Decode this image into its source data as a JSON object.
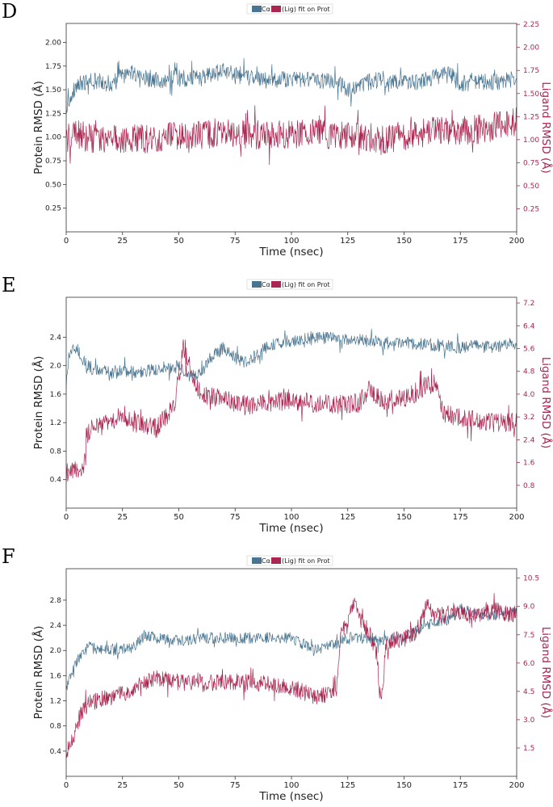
{
  "colors": {
    "protein": "#4a7590",
    "ligand": "#a8264f",
    "axis": "#222222"
  },
  "chart_data": [
    {
      "type": "line",
      "panel_label": "D",
      "legend": [
        "Cα",
        "(Lig) fit on Prot"
      ],
      "xlabel": "Time (nsec)",
      "ylabel": "Protein RMSD (Å)",
      "y2label": "Ligand RMSD (Å)",
      "xlim": [
        0,
        200
      ],
      "ylim": [
        0,
        2.2
      ],
      "y2lim": [
        0,
        2.26
      ],
      "x_ticks": [
        "0",
        "25",
        "50",
        "75",
        "100",
        "125",
        "150",
        "175",
        "200"
      ],
      "y_ticks": [
        "0.25",
        "0.50",
        "0.75",
        "1.00",
        "1.25",
        "1.50",
        "1.75",
        "2.00"
      ],
      "y2_ticks": [
        "0.25",
        "0.50",
        "0.75",
        "1.00",
        "1.25",
        "1.50",
        "1.75",
        "2.00",
        "2.25"
      ],
      "series": [
        {
          "name": "Protein Cα",
          "axis": "left",
          "x": [
            0,
            2,
            5,
            10,
            15,
            20,
            25,
            30,
            40,
            50,
            60,
            70,
            75,
            80,
            90,
            100,
            110,
            120,
            125,
            130,
            140,
            150,
            160,
            170,
            175,
            180,
            190,
            200
          ],
          "y": [
            1.3,
            1.45,
            1.55,
            1.58,
            1.6,
            1.55,
            1.65,
            1.68,
            1.6,
            1.62,
            1.62,
            1.7,
            1.65,
            1.63,
            1.6,
            1.62,
            1.6,
            1.58,
            1.5,
            1.55,
            1.62,
            1.58,
            1.6,
            1.68,
            1.55,
            1.6,
            1.58,
            1.62
          ],
          "noise": 0.09
        },
        {
          "name": "(Lig) fit on Prot",
          "axis": "right",
          "x": [
            0,
            2,
            5,
            10,
            20,
            30,
            40,
            50,
            60,
            70,
            80,
            90,
            100,
            110,
            120,
            130,
            140,
            150,
            160,
            170,
            180,
            190,
            200
          ],
          "y": [
            1.0,
            1.05,
            1.05,
            1.02,
            1.0,
            1.02,
            1.0,
            1.05,
            1.05,
            1.08,
            1.05,
            1.05,
            1.05,
            1.08,
            1.05,
            1.05,
            1.0,
            1.05,
            1.08,
            1.1,
            1.1,
            1.15,
            1.2
          ],
          "noise": 0.16
        }
      ]
    },
    {
      "type": "line",
      "panel_label": "E",
      "legend": [
        "Cα",
        "(Lig) fit on Prot"
      ],
      "xlabel": "Time (nsec)",
      "ylabel": "Protein RMSD (Å)",
      "y2label": "Ligand RMSD (Å)",
      "xlim": [
        0,
        200
      ],
      "ylim": [
        0,
        2.96
      ],
      "y2lim": [
        0,
        7.4
      ],
      "x_ticks": [
        "0",
        "25",
        "50",
        "75",
        "100",
        "125",
        "150",
        "175",
        "200"
      ],
      "y_ticks": [
        "0.4",
        "0.8",
        "1.2",
        "1.6",
        "2.0",
        "2.4"
      ],
      "y2_ticks": [
        "0.8",
        "1.6",
        "2.4",
        "3.2",
        "4.0",
        "4.8",
        "5.6",
        "6.4",
        "7.2"
      ],
      "series": [
        {
          "name": "Protein Cα",
          "axis": "left",
          "x": [
            0,
            2,
            5,
            8,
            12,
            20,
            25,
            30,
            40,
            50,
            55,
            60,
            65,
            70,
            75,
            80,
            85,
            90,
            100,
            110,
            120,
            130,
            140,
            150,
            160,
            170,
            175,
            180,
            190,
            200
          ],
          "y": [
            1.75,
            2.2,
            2.25,
            2.05,
            1.95,
            1.9,
            1.95,
            1.9,
            1.95,
            2.0,
            1.85,
            1.9,
            2.15,
            2.25,
            2.1,
            2.05,
            2.15,
            2.3,
            2.35,
            2.4,
            2.38,
            2.36,
            2.32,
            2.32,
            2.3,
            2.28,
            2.25,
            2.28,
            2.25,
            2.32
          ],
          "noise": 0.09
        },
        {
          "name": "(Lig) fit on Prot",
          "axis": "right",
          "x": [
            0,
            3,
            6,
            8,
            9,
            12,
            20,
            25,
            30,
            40,
            45,
            48,
            50,
            52,
            54,
            56,
            60,
            70,
            80,
            90,
            100,
            110,
            120,
            130,
            135,
            140,
            150,
            160,
            163,
            165,
            168,
            175,
            185,
            200
          ],
          "y": [
            1.2,
            1.4,
            1.3,
            1.5,
            2.6,
            2.8,
            3.0,
            3.3,
            3.0,
            2.8,
            3.3,
            3.6,
            4.6,
            5.6,
            5.2,
            4.6,
            4.0,
            3.8,
            3.6,
            3.7,
            3.8,
            3.7,
            3.6,
            3.7,
            4.2,
            3.8,
            3.8,
            4.3,
            4.4,
            4.0,
            3.3,
            3.2,
            3.0,
            3.0
          ],
          "noise": 0.35
        }
      ]
    },
    {
      "type": "line",
      "panel_label": "F",
      "legend": [
        "Cα",
        "(Lig) fit on Prot"
      ],
      "xlabel": "Time (nsec)",
      "ylabel": "Protein RMSD (Å)",
      "y2label": "Ligand RMSD (Å)",
      "xlim": [
        0,
        200
      ],
      "ylim": [
        0,
        3.3
      ],
      "y2lim": [
        0,
        11.0
      ],
      "x_ticks": [
        "0",
        "25",
        "50",
        "75",
        "100",
        "125",
        "150",
        "175",
        "200"
      ],
      "y_ticks": [
        "0.4",
        "0.8",
        "1.2",
        "1.6",
        "2.0",
        "2.4",
        "2.8"
      ],
      "y2_ticks": [
        "1.5",
        "3.0",
        "4.5",
        "6.0",
        "7.5",
        "9.0",
        "10.5"
      ],
      "series": [
        {
          "name": "Protein Cα",
          "axis": "left",
          "x": [
            0,
            3,
            6,
            10,
            20,
            30,
            35,
            40,
            50,
            60,
            70,
            80,
            90,
            100,
            105,
            110,
            120,
            125,
            130,
            140,
            150,
            155,
            160,
            170,
            175,
            180,
            190,
            200
          ],
          "y": [
            1.4,
            1.7,
            1.9,
            2.05,
            2.0,
            2.05,
            2.25,
            2.2,
            2.15,
            2.2,
            2.2,
            2.2,
            2.2,
            2.2,
            2.1,
            2.0,
            2.1,
            2.2,
            2.2,
            2.15,
            2.2,
            2.3,
            2.4,
            2.5,
            2.65,
            2.6,
            2.55,
            2.65
          ],
          "noise": 0.09
        },
        {
          "name": "(Lig) fit on Prot",
          "axis": "right",
          "x": [
            0,
            3,
            6,
            10,
            20,
            30,
            35,
            40,
            50,
            60,
            70,
            80,
            90,
            100,
            105,
            110,
            115,
            120,
            122,
            125,
            128,
            130,
            135,
            138,
            139,
            140,
            142,
            145,
            150,
            155,
            160,
            165,
            170,
            175,
            180,
            190,
            200
          ],
          "y": [
            1.2,
            2.0,
            3.2,
            3.9,
            4.2,
            4.6,
            5.0,
            5.2,
            5.0,
            4.9,
            5.0,
            5.0,
            4.9,
            4.7,
            4.5,
            4.2,
            4.3,
            4.6,
            7.8,
            8.0,
            9.5,
            8.5,
            7.5,
            6.5,
            4.5,
            4.0,
            7.0,
            7.2,
            7.3,
            7.5,
            9.0,
            8.5,
            8.6,
            8.8,
            8.5,
            8.8,
            8.5
          ],
          "noise": 0.45
        }
      ]
    }
  ]
}
